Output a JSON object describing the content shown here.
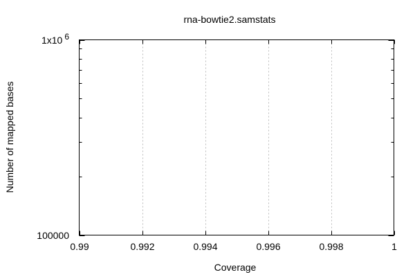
{
  "chart_data": {
    "type": "line",
    "title": "rna-bowtie2.samstats",
    "xlabel": "Coverage",
    "ylabel": "Number of mapped bases",
    "xlim": [
      0.99,
      1.0
    ],
    "ylim": [
      100000,
      1000000
    ],
    "yscale": "log",
    "x_ticks": [
      0.99,
      0.992,
      0.994,
      0.996,
      0.998,
      1.0
    ],
    "x_tick_labels": [
      "0.99",
      "0.992",
      "0.994",
      "0.996",
      "0.998",
      "1"
    ],
    "y_tick_labels": {
      "lower": "100000",
      "upper_mantissa": "1x10",
      "upper_exponent": "6"
    },
    "grid": "vertical-dotted",
    "series": []
  }
}
